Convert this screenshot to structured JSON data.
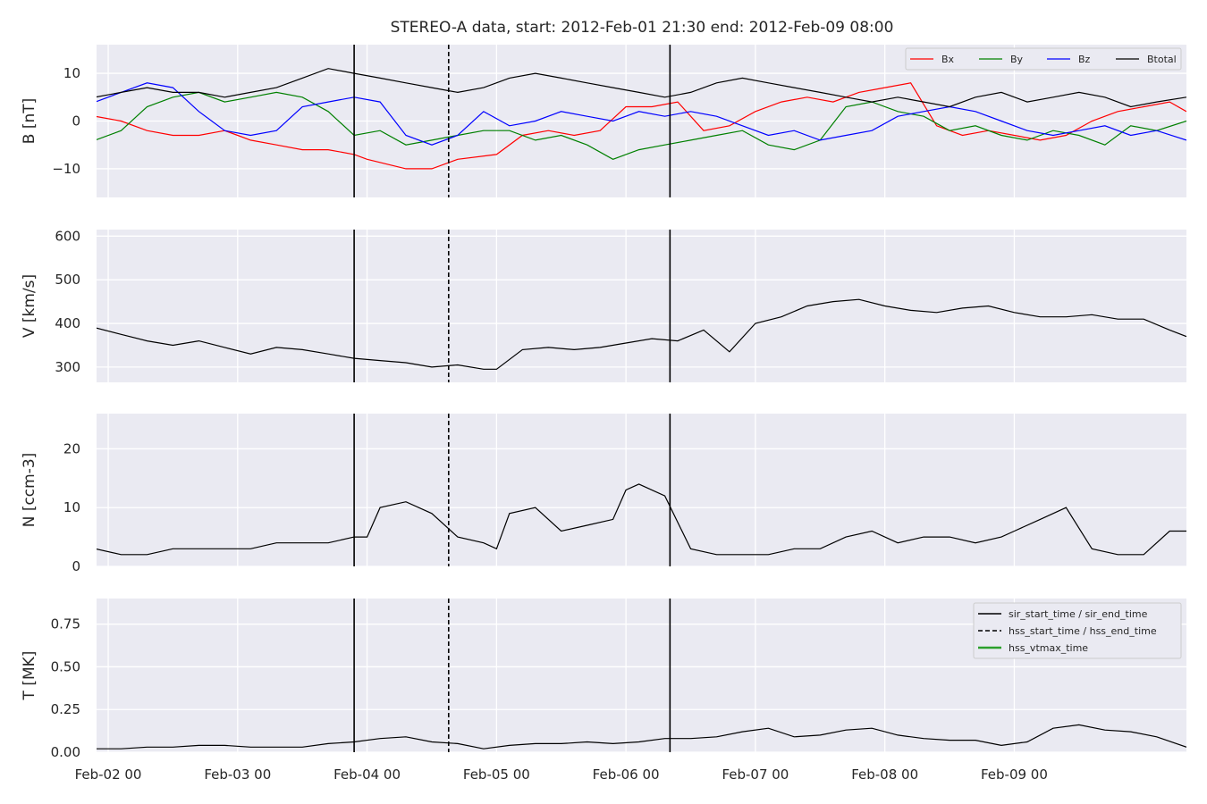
{
  "title": "STEREO-A data, start: 2012-Feb-01 21:30  end: 2012-Feb-09 08:00",
  "colors": {
    "background": "#eaeaf2",
    "grid": "#ffffff",
    "bx": "#ff0000",
    "by": "#008000",
    "bz": "#0000ff",
    "btotal": "#000000",
    "vtmax": "#2ca02c"
  },
  "chart_data": [
    {
      "type": "line",
      "name": "magnetic-field",
      "ylabel": "B [nT]",
      "ylim": [
        -16,
        16
      ],
      "yticks": [
        -10,
        0,
        10
      ],
      "grid": true,
      "legend_position": "top-right",
      "legend": [
        "Bx",
        "By",
        "Bz",
        "Btotal"
      ],
      "series": [
        {
          "name": "Bx",
          "color": "#ff0000",
          "x": [
            -0.1,
            0.1,
            0.3,
            0.5,
            0.7,
            0.9,
            1.0,
            1.1,
            1.3,
            1.5,
            1.7,
            1.9,
            2.0,
            2.3,
            2.5,
            2.7,
            3.0,
            3.2,
            3.4,
            3.6,
            3.8,
            4.0,
            4.2,
            4.4,
            4.6,
            4.8,
            5.0,
            5.2,
            5.4,
            5.6,
            5.8,
            6.0,
            6.2,
            6.4,
            6.6,
            6.8,
            7.0,
            7.2,
            7.4,
            7.6,
            7.8,
            8.0,
            8.2,
            8.33
          ],
          "y": [
            1,
            0,
            -2,
            -3,
            -3,
            -2,
            -3,
            -4,
            -5,
            -6,
            -6,
            -7,
            -8,
            -10,
            -10,
            -8,
            -7,
            -3,
            -2,
            -3,
            -2,
            3,
            3,
            4,
            -2,
            -1,
            2,
            4,
            5,
            4,
            6,
            7,
            8,
            -1,
            -3,
            -2,
            -3,
            -4,
            -3,
            0,
            2,
            3,
            4,
            2
          ]
        },
        {
          "name": "By",
          "color": "#008000",
          "x": [
            -0.1,
            0.1,
            0.3,
            0.5,
            0.7,
            0.9,
            1.1,
            1.3,
            1.5,
            1.7,
            1.9,
            2.1,
            2.3,
            2.5,
            2.7,
            2.9,
            3.1,
            3.3,
            3.5,
            3.7,
            3.9,
            4.1,
            4.3,
            4.5,
            4.7,
            4.9,
            5.1,
            5.3,
            5.5,
            5.7,
            5.9,
            6.1,
            6.3,
            6.5,
            6.7,
            6.9,
            7.1,
            7.3,
            7.5,
            7.7,
            7.9,
            8.1,
            8.33
          ],
          "y": [
            -4,
            -2,
            3,
            5,
            6,
            4,
            5,
            6,
            5,
            2,
            -3,
            -2,
            -5,
            -4,
            -3,
            -2,
            -2,
            -4,
            -3,
            -5,
            -8,
            -6,
            -5,
            -4,
            -3,
            -2,
            -5,
            -6,
            -4,
            3,
            4,
            2,
            1,
            -2,
            -1,
            -3,
            -4,
            -2,
            -3,
            -5,
            -1,
            -2,
            0
          ]
        },
        {
          "name": "Bz",
          "color": "#0000ff",
          "x": [
            -0.1,
            0.1,
            0.3,
            0.5,
            0.7,
            0.9,
            1.1,
            1.3,
            1.5,
            1.7,
            1.9,
            2.1,
            2.3,
            2.5,
            2.7,
            2.9,
            3.1,
            3.3,
            3.5,
            3.7,
            3.9,
            4.1,
            4.3,
            4.5,
            4.7,
            4.9,
            5.1,
            5.3,
            5.5,
            5.7,
            5.9,
            6.1,
            6.3,
            6.5,
            6.7,
            6.9,
            7.1,
            7.3,
            7.5,
            7.7,
            7.9,
            8.1,
            8.33
          ],
          "y": [
            4,
            6,
            8,
            7,
            2,
            -2,
            -3,
            -2,
            3,
            4,
            5,
            4,
            -3,
            -5,
            -3,
            2,
            -1,
            0,
            2,
            1,
            0,
            2,
            1,
            2,
            1,
            -1,
            -3,
            -2,
            -4,
            -3,
            -2,
            1,
            2,
            3,
            2,
            0,
            -2,
            -3,
            -2,
            -1,
            -3,
            -2,
            -4
          ]
        },
        {
          "name": "Btotal",
          "color": "#000000",
          "x": [
            -0.1,
            0.1,
            0.3,
            0.5,
            0.7,
            0.9,
            1.1,
            1.3,
            1.5,
            1.7,
            1.9,
            2.1,
            2.3,
            2.5,
            2.7,
            2.9,
            3.1,
            3.3,
            3.5,
            3.7,
            3.9,
            4.1,
            4.3,
            4.5,
            4.7,
            4.9,
            5.1,
            5.3,
            5.5,
            5.7,
            5.9,
            6.1,
            6.3,
            6.5,
            6.7,
            6.9,
            7.1,
            7.3,
            7.5,
            7.7,
            7.9,
            8.1,
            8.33
          ],
          "y": [
            5,
            6,
            7,
            6,
            6,
            5,
            6,
            7,
            9,
            11,
            10,
            9,
            8,
            7,
            6,
            7,
            9,
            10,
            9,
            8,
            7,
            6,
            5,
            6,
            8,
            9,
            8,
            7,
            6,
            5,
            4,
            5,
            4,
            3,
            5,
            6,
            4,
            5,
            6,
            5,
            3,
            4,
            5
          ]
        }
      ]
    },
    {
      "type": "line",
      "name": "speed",
      "ylabel": "V [km/s]",
      "ylim": [
        265,
        615
      ],
      "yticks": [
        300,
        400,
        500,
        600
      ],
      "grid": true,
      "series": [
        {
          "name": "V",
          "color": "#000000",
          "x": [
            -0.1,
            0.1,
            0.3,
            0.5,
            0.7,
            0.9,
            1.1,
            1.3,
            1.5,
            1.7,
            1.9,
            2.1,
            2.3,
            2.5,
            2.7,
            2.9,
            3.0,
            3.2,
            3.4,
            3.6,
            3.8,
            4.0,
            4.2,
            4.4,
            4.6,
            4.8,
            5.0,
            5.2,
            5.4,
            5.6,
            5.8,
            6.0,
            6.2,
            6.4,
            6.6,
            6.8,
            7.0,
            7.2,
            7.4,
            7.6,
            7.8,
            8.0,
            8.2,
            8.33
          ],
          "y": [
            390,
            375,
            360,
            350,
            360,
            345,
            330,
            345,
            340,
            330,
            320,
            315,
            310,
            300,
            305,
            295,
            295,
            340,
            345,
            340,
            345,
            355,
            365,
            360,
            385,
            335,
            400,
            415,
            440,
            450,
            455,
            440,
            430,
            425,
            435,
            440,
            425,
            415,
            415,
            420,
            410,
            410,
            385,
            370
          ]
        }
      ]
    },
    {
      "type": "line",
      "name": "density",
      "ylabel": "N [ccm-3]",
      "ylim": [
        0,
        26
      ],
      "yticks": [
        0,
        10,
        20
      ],
      "grid": true,
      "series": [
        {
          "name": "N",
          "color": "#000000",
          "x": [
            -0.1,
            0.1,
            0.3,
            0.5,
            0.7,
            0.9,
            1.1,
            1.3,
            1.5,
            1.7,
            1.9,
            2.0,
            2.1,
            2.3,
            2.5,
            2.7,
            2.9,
            3.0,
            3.1,
            3.3,
            3.5,
            3.7,
            3.9,
            4.0,
            4.1,
            4.3,
            4.5,
            4.7,
            4.9,
            5.1,
            5.3,
            5.5,
            5.7,
            5.9,
            6.1,
            6.3,
            6.5,
            6.7,
            6.9,
            7.0,
            7.2,
            7.4,
            7.6,
            7.8,
            8.0,
            8.2,
            8.33
          ],
          "y": [
            3,
            2,
            2,
            3,
            3,
            3,
            3,
            4,
            4,
            4,
            5,
            5,
            10,
            11,
            9,
            5,
            4,
            3,
            9,
            10,
            6,
            7,
            8,
            13,
            14,
            12,
            3,
            2,
            2,
            2,
            3,
            3,
            5,
            6,
            4,
            5,
            5,
            4,
            5,
            6,
            8,
            10,
            3,
            2,
            2,
            6,
            6
          ]
        }
      ]
    },
    {
      "type": "line",
      "name": "temperature",
      "ylabel": "T [MK]",
      "ylim": [
        0,
        0.9
      ],
      "yticks": [
        0.0,
        0.25,
        0.5,
        0.75
      ],
      "grid": true,
      "legend_position": "top-right",
      "legend": [
        "sir_start_time / sir_end_time",
        "hss_start_time / hss_end_time",
        "hss_vtmax_time"
      ],
      "series": [
        {
          "name": "T",
          "color": "#000000",
          "x": [
            -0.1,
            0.1,
            0.3,
            0.5,
            0.7,
            0.9,
            1.1,
            1.3,
            1.5,
            1.7,
            1.9,
            2.1,
            2.3,
            2.5,
            2.7,
            2.9,
            3.1,
            3.3,
            3.5,
            3.7,
            3.9,
            4.1,
            4.3,
            4.5,
            4.7,
            4.9,
            5.1,
            5.3,
            5.5,
            5.7,
            5.9,
            6.1,
            6.3,
            6.5,
            6.7,
            6.9,
            7.1,
            7.3,
            7.5,
            7.7,
            7.9,
            8.1,
            8.33
          ],
          "y": [
            0.02,
            0.02,
            0.03,
            0.03,
            0.04,
            0.04,
            0.03,
            0.03,
            0.03,
            0.05,
            0.06,
            0.08,
            0.09,
            0.06,
            0.05,
            0.02,
            0.04,
            0.05,
            0.05,
            0.06,
            0.05,
            0.06,
            0.08,
            0.08,
            0.09,
            0.12,
            0.14,
            0.09,
            0.1,
            0.13,
            0.14,
            0.1,
            0.08,
            0.07,
            0.07,
            0.04,
            0.06,
            0.14,
            0.16,
            0.13,
            0.12,
            0.09,
            0.03
          ]
        }
      ]
    }
  ],
  "x_axis": {
    "ticks": [
      0,
      1,
      2,
      3,
      4,
      5,
      6,
      7
    ],
    "tick_labels": [
      "Feb-02 00",
      "Feb-03 00",
      "Feb-04 00",
      "Feb-05 00",
      "Feb-06 00",
      "Feb-07 00",
      "Feb-08 00",
      "Feb-09 00"
    ],
    "xlim": [
      -0.09,
      8.33
    ]
  },
  "event_lines": {
    "sir_start_time": 1.9,
    "hss_start_time": 2.63,
    "sir_end_time": 4.34
  }
}
